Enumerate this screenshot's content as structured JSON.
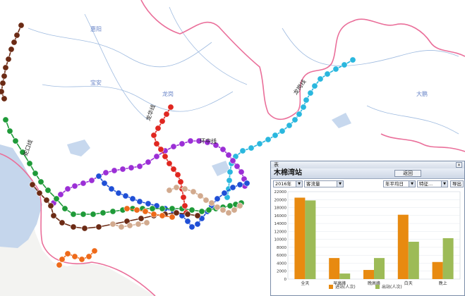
{
  "map": {
    "labels": [
      {
        "id": "region-1",
        "text": "惠阳"
      },
      {
        "id": "region-2",
        "text": "龙岗"
      },
      {
        "id": "region-3",
        "text": "宝安"
      },
      {
        "id": "region-4",
        "text": "大鹏"
      }
    ],
    "line_labels": {
      "huanzhong": "环中线",
      "longhua": "龙华线",
      "longgang": "龙岗线",
      "shekou": "蛇口线"
    },
    "colors": {
      "line_blue": "#1f4fd6",
      "line_green": "#1e9a38",
      "line_purple": "#9b2fd6",
      "line_cyan": "#2ab7de",
      "line_red": "#e0261f",
      "line_brown": "#6b2a14",
      "line_orange": "#ee6a1a",
      "line_tan": "#d2aa8e",
      "boundary": "#ea6f9a",
      "water": "#b6cce8"
    }
  },
  "panel": {
    "window_title": "表",
    "close_icon": "close-icon",
    "station_name": "木棉湾站",
    "back_label": "返回",
    "year_select": "2016年",
    "flow_select": "客流量",
    "period_select": "年平均日",
    "time_select": "特征...",
    "export_label": "导出"
  },
  "chart_data": {
    "type": "bar",
    "categories": [
      "全天",
      "早高峰",
      "晚高峰",
      "白天",
      "晚上"
    ],
    "series": [
      {
        "name": "进站(人次)",
        "color": "#e88a10",
        "values": [
          20500,
          5300,
          2300,
          16200,
          4300
        ]
      },
      {
        "name": "出站(人次)",
        "color": "#9dbb57",
        "values": [
          19800,
          1400,
          5300,
          9400,
          10300
        ]
      }
    ],
    "ylim": [
      0,
      22000
    ],
    "yticks": [
      0,
      2000,
      4000,
      6000,
      8000,
      10000,
      12000,
      14000,
      16000,
      18000,
      20000,
      22000
    ],
    "legend_position": "bottom"
  }
}
